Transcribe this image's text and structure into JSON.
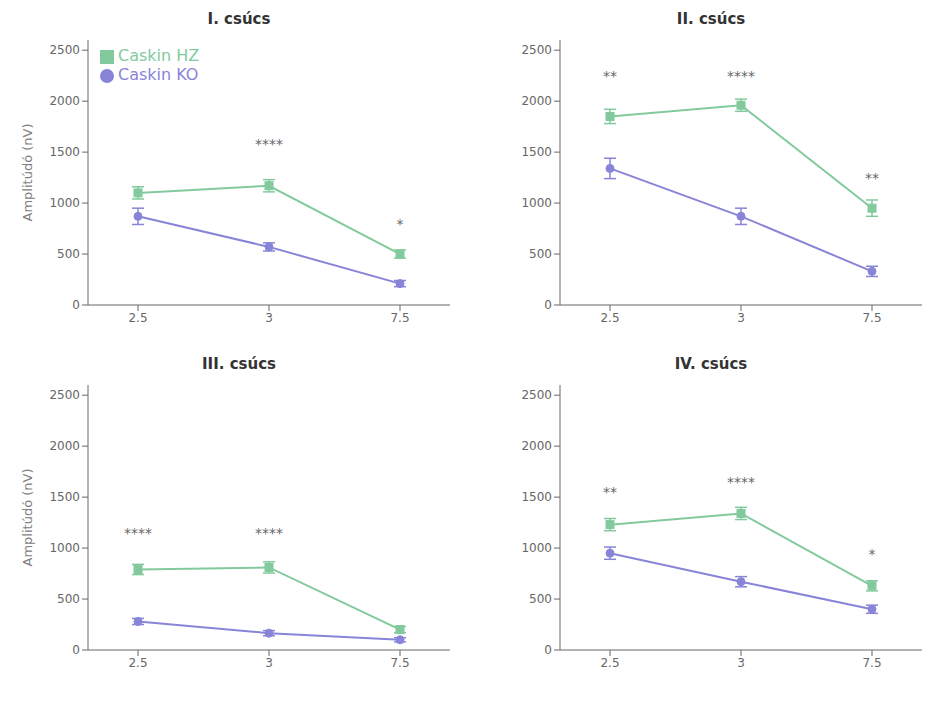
{
  "chart_data": [
    {
      "type": "line",
      "title": "I. csúcs",
      "y_label": "Amplitúdó (nV)",
      "categories": [
        "2.5",
        "3",
        "7.5"
      ],
      "ylim": [
        0,
        2600
      ],
      "yticks": [
        0,
        500,
        1000,
        1500,
        2000,
        2500
      ],
      "legend": "upper left",
      "series": [
        {
          "name": "Caskin KO",
          "color": "#8884d8",
          "marker": "circle",
          "values": [
            870,
            570,
            210
          ],
          "errors": [
            80,
            40,
            30
          ]
        },
        {
          "name": "Caskin HZ",
          "color": "#82ca9d",
          "marker": "square",
          "values": [
            1100,
            1170,
            500
          ],
          "errors": [
            60,
            60,
            40
          ]
        }
      ],
      "annotations": [
        {
          "x": "3",
          "y": 1480,
          "text": "****"
        },
        {
          "x": "7.5",
          "y": 700,
          "text": "*"
        }
      ]
    },
    {
      "type": "line",
      "title": "II. csúcs",
      "categories": [
        "2.5",
        "3",
        "7.5"
      ],
      "ylim": [
        0,
        2600
      ],
      "yticks": [
        0,
        500,
        1000,
        1500,
        2000,
        2500
      ],
      "series": [
        {
          "name": "Caskin KO",
          "color": "#8884d8",
          "marker": "circle",
          "values": [
            1340,
            870,
            330
          ],
          "errors": [
            100,
            80,
            50
          ]
        },
        {
          "name": "Caskin HZ",
          "color": "#82ca9d",
          "marker": "square",
          "values": [
            1850,
            1960,
            950
          ],
          "errors": [
            70,
            60,
            80
          ]
        }
      ],
      "annotations": [
        {
          "x": "2.5",
          "y": 2150,
          "text": "**"
        },
        {
          "x": "3",
          "y": 2150,
          "text": "****"
        },
        {
          "x": "7.5",
          "y": 1150,
          "text": "**"
        }
      ]
    },
    {
      "type": "line",
      "title": "III. csúcs",
      "y_label": "Amplitúdó (nV)",
      "categories": [
        "2.5",
        "3",
        "7.5"
      ],
      "ylim": [
        0,
        2600
      ],
      "yticks": [
        0,
        500,
        1000,
        1500,
        2000,
        2500
      ],
      "series": [
        {
          "name": "Caskin KO",
          "color": "#8884d8",
          "marker": "circle",
          "values": [
            280,
            165,
            100
          ],
          "errors": [
            30,
            25,
            20
          ]
        },
        {
          "name": "Caskin HZ",
          "color": "#82ca9d",
          "marker": "square",
          "values": [
            790,
            810,
            200
          ],
          "errors": [
            50,
            55,
            30
          ]
        }
      ],
      "annotations": [
        {
          "x": "2.5",
          "y": 1050,
          "text": "****"
        },
        {
          "x": "3",
          "y": 1050,
          "text": "****"
        }
      ]
    },
    {
      "type": "line",
      "title": "IV. csúcs",
      "categories": [
        "2.5",
        "3",
        "7.5"
      ],
      "ylim": [
        0,
        2600
      ],
      "yticks": [
        0,
        500,
        1000,
        1500,
        2000,
        2500
      ],
      "series": [
        {
          "name": "Caskin KO",
          "color": "#8884d8",
          "marker": "circle",
          "values": [
            950,
            670,
            400
          ],
          "errors": [
            60,
            50,
            40
          ]
        },
        {
          "name": "Caskin HZ",
          "color": "#82ca9d",
          "marker": "square",
          "values": [
            1230,
            1340,
            630
          ],
          "errors": [
            60,
            60,
            50
          ]
        }
      ],
      "annotations": [
        {
          "x": "2.5",
          "y": 1450,
          "text": "**"
        },
        {
          "x": "3",
          "y": 1550,
          "text": "****"
        },
        {
          "x": "7.5",
          "y": 840,
          "text": "*"
        }
      ]
    }
  ]
}
